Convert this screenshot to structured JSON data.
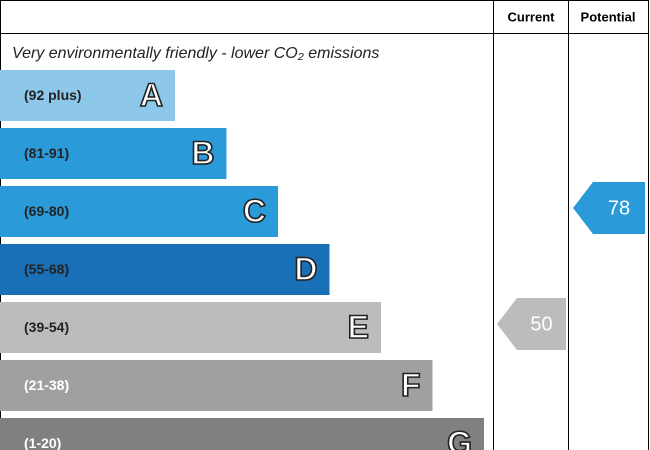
{
  "chart_data": {
    "type": "rating",
    "columns": [
      "Current",
      "Potential"
    ],
    "subtitle": "Very environmentally friendly - lower CO₂ emissions",
    "bands": [
      {
        "range": "(92 plus)",
        "letter": "A",
        "color": "#8dc8ea"
      },
      {
        "range": "(81-91)",
        "letter": "B",
        "color": "#2b9ad8"
      },
      {
        "range": "(69-80)",
        "letter": "C",
        "color": "#2b9ad8"
      },
      {
        "range": "(55-68)",
        "letter": "D",
        "color": "#1a70b6"
      },
      {
        "range": "(39-54)",
        "letter": "E",
        "color": "#bcbcbc"
      },
      {
        "range": "(21-38)",
        "letter": "F",
        "color": "#a0a0a0"
      },
      {
        "range": "(1-20)",
        "letter": "G",
        "color": "#808080"
      }
    ],
    "current": 50,
    "potential": 78
  }
}
